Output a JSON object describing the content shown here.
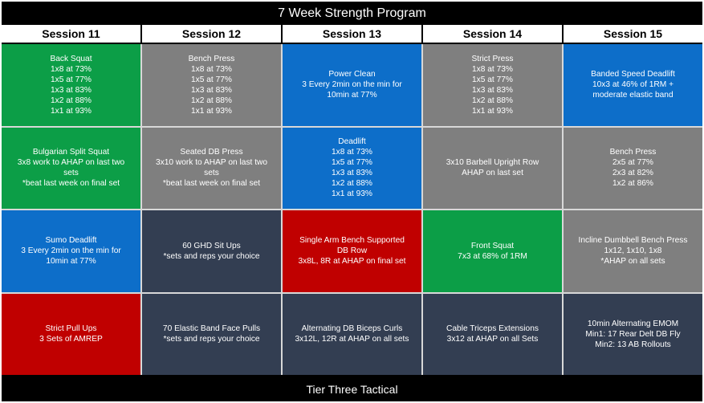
{
  "title": "7 Week Strength Program",
  "footer": "Tier Three Tactical",
  "colors": {
    "green": "#0c9e47",
    "gray": "#7f7f7f",
    "blue": "#0d6ec9",
    "dark": "#333e52",
    "red": "#c00000"
  },
  "sessions": [
    "Session 11",
    "Session 12",
    "Session 13",
    "Session 14",
    "Session 15"
  ],
  "rows": [
    [
      {
        "color": "green",
        "lines": [
          "Back Squat",
          "1x8 at 73%",
          "1x5 at 77%",
          "1x3 at 83%",
          "1x2 at 88%",
          "1x1 at 93%"
        ]
      },
      {
        "color": "gray",
        "lines": [
          "Bench Press",
          "1x8 at 73%",
          "1x5 at 77%",
          "1x3 at 83%",
          "1x2 at 88%",
          "1x1 at 93%"
        ]
      },
      {
        "color": "blue",
        "lines": [
          "Power Clean",
          "3 Every 2min on the min for",
          "10min at 77%"
        ]
      },
      {
        "color": "gray",
        "lines": [
          "Strict Press",
          "1x8 at 73%",
          "1x5 at 77%",
          "1x3 at 83%",
          "1x2 at 88%",
          "1x1 at 93%"
        ]
      },
      {
        "color": "blue",
        "lines": [
          "Banded Speed Deadlift",
          "10x3 at 46% of 1RM +",
          "moderate elastic band"
        ]
      }
    ],
    [
      {
        "color": "green",
        "lines": [
          "Bulgarian Split Squat",
          "3x8 work to AHAP on last two",
          "sets",
          "*beat last week on final set"
        ]
      },
      {
        "color": "gray",
        "lines": [
          "Seated DB Press",
          "3x10 work to AHAP on last two",
          "sets",
          "*beat last week on final set"
        ]
      },
      {
        "color": "blue",
        "lines": [
          "Deadlift",
          "1x8 at 73%",
          "1x5 at 77%",
          "1x3 at 83%",
          "1x2 at 88%",
          "1x1 at 93%"
        ]
      },
      {
        "color": "gray",
        "lines": [
          "3x10 Barbell Upright Row",
          "AHAP on last set"
        ]
      },
      {
        "color": "gray",
        "lines": [
          "Bench Press",
          "2x5 at 77%",
          "2x3 at 82%",
          "1x2 at 86%"
        ]
      }
    ],
    [
      {
        "color": "blue",
        "lines": [
          "Sumo Deadlift",
          "3 Every 2min on the min for",
          "10min at 77%"
        ]
      },
      {
        "color": "dark",
        "lines": [
          "60 GHD Sit Ups",
          "*sets and reps your choice"
        ]
      },
      {
        "color": "red",
        "lines": [
          "Single Arm Bench Supported",
          "DB Row",
          "3x8L, 8R at AHAP on final set"
        ]
      },
      {
        "color": "green",
        "lines": [
          "Front Squat",
          "7x3 at 68% of 1RM"
        ]
      },
      {
        "color": "gray",
        "lines": [
          "Incline Dumbbell Bench Press",
          "1x12, 1x10, 1x8",
          "*AHAP on all sets"
        ]
      }
    ],
    [
      {
        "color": "red",
        "lines": [
          "Strict Pull Ups",
          "3 Sets of AMREP"
        ]
      },
      {
        "color": "dark",
        "lines": [
          "70 Elastic Band Face Pulls",
          "*sets and reps your choice"
        ]
      },
      {
        "color": "dark",
        "lines": [
          "Alternating DB Biceps Curls",
          "3x12L, 12R at AHAP on all sets"
        ]
      },
      {
        "color": "dark",
        "lines": [
          "Cable Triceps Extensions",
          "3x12 at AHAP on all Sets"
        ]
      },
      {
        "color": "dark",
        "lines": [
          "10min Alternating EMOM",
          "Min1: 17 Rear Delt DB Fly",
          "Min2: 13 AB Rollouts"
        ]
      }
    ]
  ]
}
